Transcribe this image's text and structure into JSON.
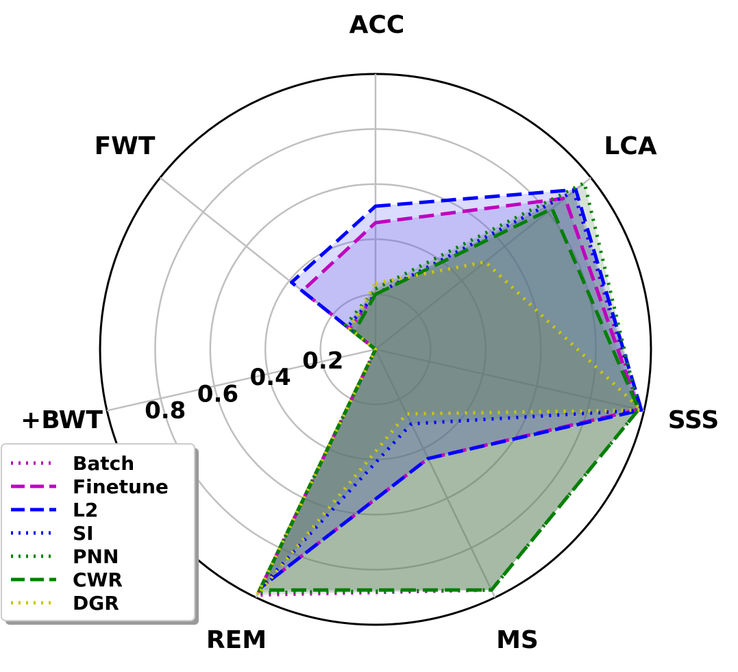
{
  "chart_data": {
    "type": "radar",
    "axes": [
      "ACC",
      "LCA",
      "SSS",
      "MS",
      "REM",
      "+BWT",
      "FWT"
    ],
    "ring_values": [
      0.2,
      0.4,
      0.6,
      0.8,
      1.0
    ],
    "ring_labels": [
      "0.2",
      "0.4",
      "0.6",
      "0.8"
    ],
    "rlim": [
      0,
      1.0
    ],
    "grid": true,
    "legend_position": "lower-left",
    "series": [
      {
        "name": "Batch",
        "color": "#bf00bf",
        "dash": "dotted",
        "fill": "#808080",
        "values": [
          0.2,
          0.92,
          0.98,
          0.97,
          0.99,
          0.0,
          0.12
        ]
      },
      {
        "name": "Finetune",
        "color": "#bf00bf",
        "dash": "dashed",
        "fill": "#6a5acd",
        "values": [
          0.46,
          0.88,
          0.98,
          0.44,
          0.96,
          0.0,
          0.34
        ]
      },
      {
        "name": "L2",
        "color": "#0000ff",
        "dash": "dashed",
        "fill": "#5a5aff",
        "values": [
          0.52,
          0.93,
          0.99,
          0.44,
          0.96,
          0.0,
          0.39
        ]
      },
      {
        "name": "SI",
        "color": "#0000ff",
        "dash": "dotted",
        "fill": "#4a6a9a",
        "values": [
          0.2,
          0.92,
          0.99,
          0.3,
          0.96,
          0.0,
          0.13
        ]
      },
      {
        "name": "PNN",
        "color": "#008000",
        "dash": "dotted",
        "fill": "#4a7a4a",
        "values": [
          0.22,
          0.97,
          0.98,
          0.97,
          0.98,
          0.0,
          0.14
        ]
      },
      {
        "name": "CWR",
        "color": "#008000",
        "dash": "dashed",
        "fill": "#4a7a4a",
        "values": [
          0.2,
          0.82,
          0.98,
          0.97,
          0.97,
          0.0,
          0.1
        ]
      },
      {
        "name": "DGR",
        "color": "#c8c800",
        "dash": "dotted",
        "fill": "#7a8a4a",
        "values": [
          0.24,
          0.51,
          0.99,
          0.26,
          0.99,
          0.0,
          0.12
        ]
      }
    ],
    "xlabel": "",
    "ylabel": ""
  }
}
